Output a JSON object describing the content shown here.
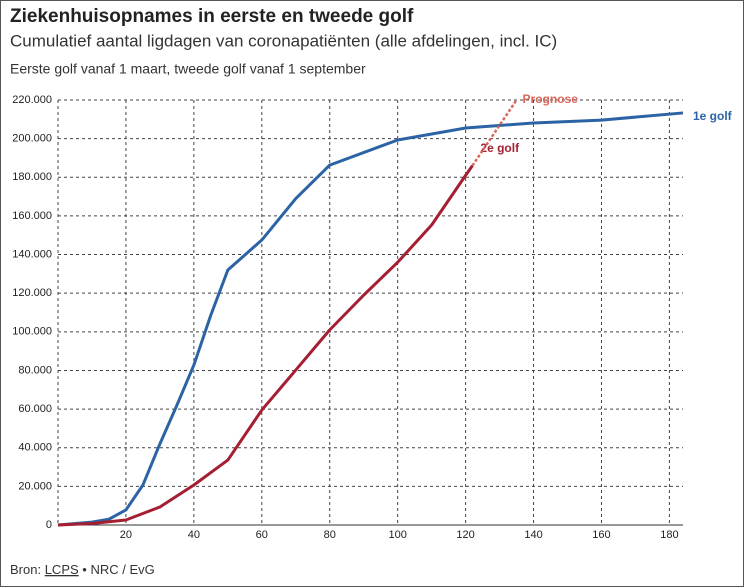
{
  "chart_data": {
    "type": "line",
    "title": "Ziekenhuisopnames in eerste en tweede golf",
    "subtitle": "Cumulatief aantal ligdagen van coronapatiënten (alle afdelingen, incl. IC)",
    "note": "Eerste golf vanaf 1 maart, tweede golf vanaf 1 september",
    "xlim": [
      0,
      184
    ],
    "xticks": [
      20,
      40,
      60,
      80,
      100,
      120,
      140,
      160,
      180
    ],
    "ylim": [
      0,
      220000
    ],
    "yticks": [
      0,
      {
        "value": 20000,
        "label": "20.000"
      },
      {
        "value": 40000,
        "label": "40.000"
      },
      {
        "value": 60000,
        "label": "60.000"
      },
      {
        "value": 80000,
        "label": "80.000"
      },
      {
        "value": 100000,
        "label": "100.000"
      },
      {
        "value": 120000,
        "label": "120.000"
      },
      {
        "value": 140000,
        "label": "140.000"
      },
      {
        "value": 160000,
        "label": "160.000"
      },
      {
        "value": 180000,
        "label": "180.000"
      },
      {
        "value": 200000,
        "label": "200.000"
      },
      {
        "value": 220000,
        "label": "220.000"
      }
    ],
    "grid": true,
    "series": [
      {
        "name": "1e golf",
        "color": "#2c63a4",
        "dashed": false,
        "x": [
          0,
          10,
          15,
          20,
          25,
          30,
          35,
          40,
          45,
          50,
          60,
          70,
          80,
          100,
          120,
          140,
          160,
          184
        ],
        "values": [
          0,
          1500,
          3000,
          7800,
          20700,
          42000,
          62000,
          82800,
          108700,
          132000,
          147500,
          169000,
          186300,
          199300,
          205500,
          208100,
          209600,
          213300
        ]
      },
      {
        "name": "2e golf",
        "color": "#a51f33",
        "dashed": false,
        "x": [
          0,
          10,
          20,
          30,
          40,
          50,
          60,
          70,
          80,
          90,
          100,
          110,
          120,
          122
        ],
        "values": [
          0,
          800,
          2600,
          9300,
          20700,
          33600,
          59500,
          80200,
          101000,
          119000,
          136000,
          155300,
          181000,
          186000
        ]
      },
      {
        "name": "Prognose",
        "color": "#d9665a",
        "dashed": true,
        "x": [
          122,
          135
        ],
        "values": [
          186000,
          220000
        ]
      }
    ]
  },
  "source": {
    "prefix": "Bron:",
    "link": "LCPS",
    "rest": "• NRC / EvG"
  }
}
